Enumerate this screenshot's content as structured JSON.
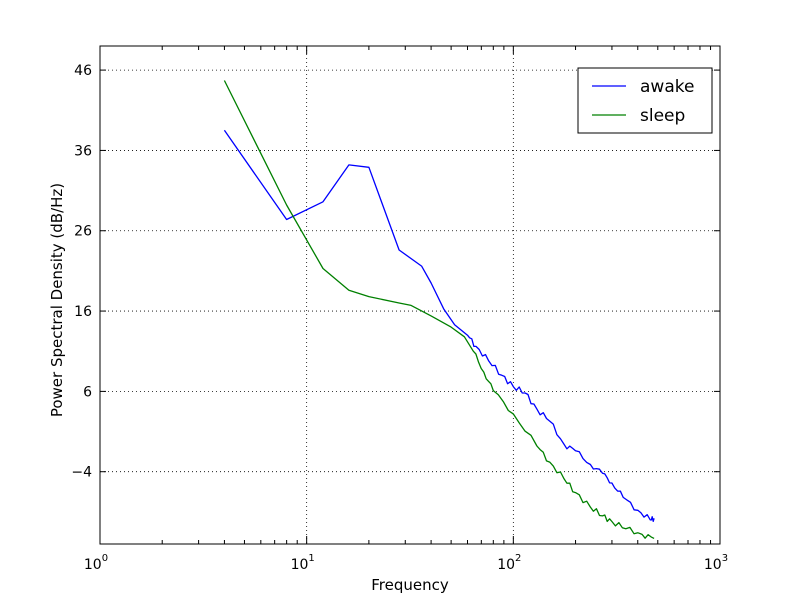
{
  "chart_data": {
    "type": "line",
    "title": "",
    "xlabel": "Frequency",
    "ylabel": "Power Spectral Density (dB/Hz)",
    "xscale": "log",
    "xlim": [
      1,
      1000
    ],
    "ylim": [
      -13,
      49
    ],
    "x_ticks": [
      {
        "base": "10",
        "exp": "0",
        "value": 1
      },
      {
        "base": "10",
        "exp": "1",
        "value": 10
      },
      {
        "base": "10",
        "exp": "2",
        "value": 100
      },
      {
        "base": "10",
        "exp": "3",
        "value": 1000
      }
    ],
    "y_ticks": [
      {
        "label": "−4",
        "value": -4
      },
      {
        "label": "6",
        "value": 6
      },
      {
        "label": "16",
        "value": 16
      },
      {
        "label": "26",
        "value": 26
      },
      {
        "label": "36",
        "value": 36
      },
      {
        "label": "46",
        "value": 46
      }
    ],
    "grid": true,
    "legend_position": "top-right",
    "series": [
      {
        "name": "awake",
        "color": "#0000ff",
        "points": [
          [
            4,
            38.5
          ],
          [
            8,
            27.4
          ],
          [
            12,
            29.6
          ],
          [
            16,
            34.2
          ],
          [
            20,
            33.9
          ],
          [
            28,
            23.6
          ],
          [
            36,
            21.6
          ],
          [
            40,
            19.5
          ],
          [
            46,
            16.3
          ],
          [
            52,
            14.3
          ],
          [
            60,
            13.0
          ],
          [
            66,
            11.6
          ],
          [
            76,
            9.8
          ],
          [
            88,
            8.0
          ],
          [
            100,
            6.6
          ],
          [
            114,
            5.8
          ],
          [
            130,
            3.8
          ],
          [
            150,
            2.3
          ],
          [
            176,
            -0.6
          ],
          [
            200,
            -1.4
          ],
          [
            236,
            -3.1
          ],
          [
            270,
            -4.2
          ],
          [
            300,
            -5.4
          ],
          [
            340,
            -7.2
          ],
          [
            400,
            -8.8
          ],
          [
            460,
            -10.0
          ],
          [
            480,
            -9.8
          ]
        ]
      },
      {
        "name": "sleep",
        "color": "#008000",
        "points": [
          [
            4,
            44.7
          ],
          [
            8,
            29.2
          ],
          [
            12,
            21.3
          ],
          [
            16,
            18.6
          ],
          [
            20,
            17.8
          ],
          [
            28,
            17.0
          ],
          [
            32,
            16.7
          ],
          [
            40,
            15.4
          ],
          [
            50,
            14.0
          ],
          [
            58,
            12.8
          ],
          [
            64,
            11.0
          ],
          [
            72,
            8.4
          ],
          [
            80,
            6.1
          ],
          [
            100,
            3.2
          ],
          [
            130,
            -0.8
          ],
          [
            150,
            -2.8
          ],
          [
            176,
            -4.9
          ],
          [
            200,
            -6.6
          ],
          [
            236,
            -8.4
          ],
          [
            270,
            -9.5
          ],
          [
            300,
            -10.2
          ],
          [
            350,
            -11.1
          ],
          [
            420,
            -11.8
          ],
          [
            480,
            -12.3
          ]
        ]
      }
    ]
  }
}
